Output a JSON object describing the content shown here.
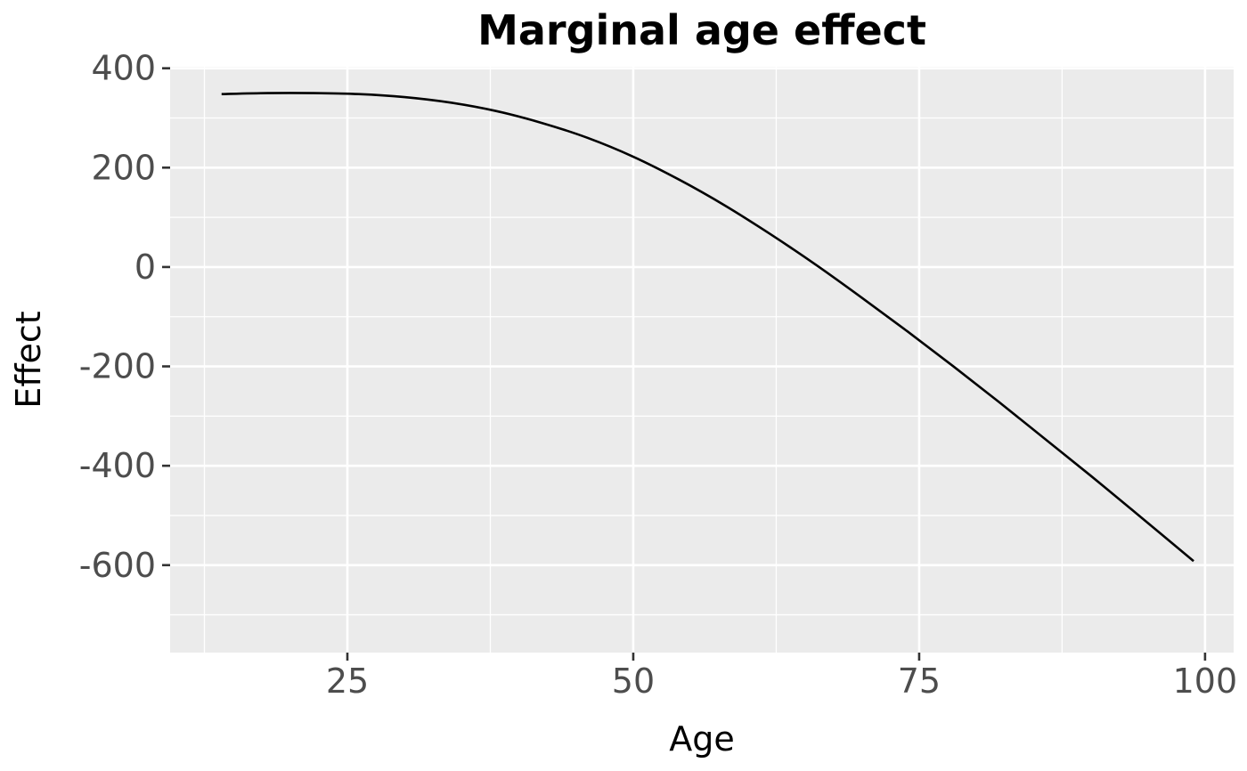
{
  "chart_data": {
    "type": "line",
    "title": "Marginal age effect",
    "xlabel": "Age",
    "ylabel": "Effect",
    "xlim": [
      9.5,
      102.5
    ],
    "ylim": [
      -776,
      403
    ],
    "x_ticks": [
      25,
      50,
      75,
      100
    ],
    "x_tick_labels": [
      "25",
      "50",
      "75",
      "100"
    ],
    "y_ticks": [
      400,
      200,
      0,
      -200,
      -400,
      -600
    ],
    "y_tick_labels": [
      "400",
      "200",
      "0",
      "-200",
      "-400",
      "-600"
    ],
    "grid": true,
    "legend": "none",
    "colors": {
      "panel": "#ebebeb",
      "grid": "#ffffff",
      "line": "#000000",
      "tick_text": "#4d4d4d"
    },
    "series": [
      {
        "x": [
          14,
          18,
          22,
          26,
          30,
          34,
          38,
          42,
          46,
          50,
          54,
          58,
          62,
          66,
          70,
          74,
          78,
          82,
          86,
          90,
          94,
          99
        ],
        "y": [
          348,
          350,
          350,
          348,
          342,
          331,
          314,
          290,
          260,
          222,
          176,
          124,
          66,
          4,
          -62,
          -130,
          -200,
          -272,
          -346,
          -420,
          -496,
          -592
        ]
      }
    ]
  }
}
